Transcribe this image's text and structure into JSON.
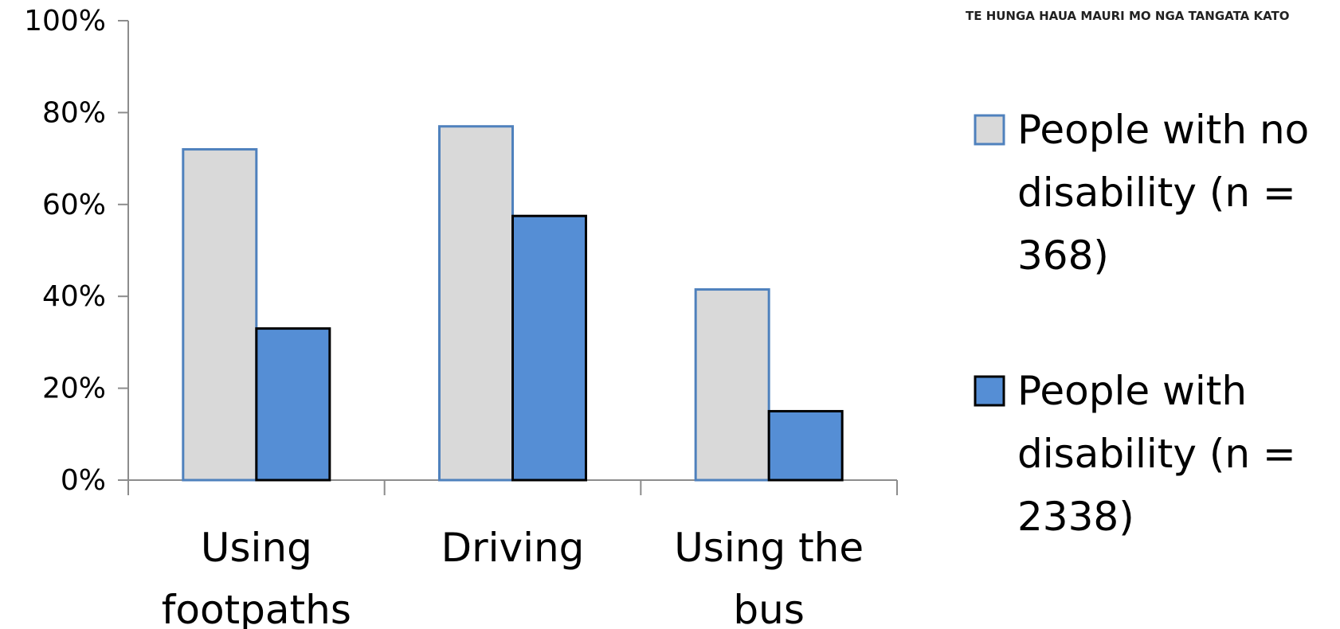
{
  "header": {
    "tagline": "TE HUNGA HAUA MAURI MO NGA TANGATA KATO"
  },
  "chart_data": {
    "type": "bar",
    "categories": [
      [
        "Using",
        "footpaths"
      ],
      [
        "Driving"
      ],
      [
        "Using the",
        "bus"
      ]
    ],
    "series": [
      {
        "name": [
          "People with no",
          "disability (n =",
          "368)"
        ],
        "values": [
          72,
          77,
          41.5
        ],
        "fill": "#d9d9d9",
        "stroke": "#4f81bd"
      },
      {
        "name": [
          "People with",
          "disability (n =",
          "2338)"
        ],
        "values": [
          33,
          57.5,
          15
        ],
        "fill": "#558ed5",
        "stroke": "#000000"
      }
    ],
    "yticks": [
      "0%",
      "20%",
      "40%",
      "60%",
      "80%",
      "100%"
    ],
    "ylim": [
      0,
      100
    ],
    "grid": false,
    "legend": "right"
  }
}
